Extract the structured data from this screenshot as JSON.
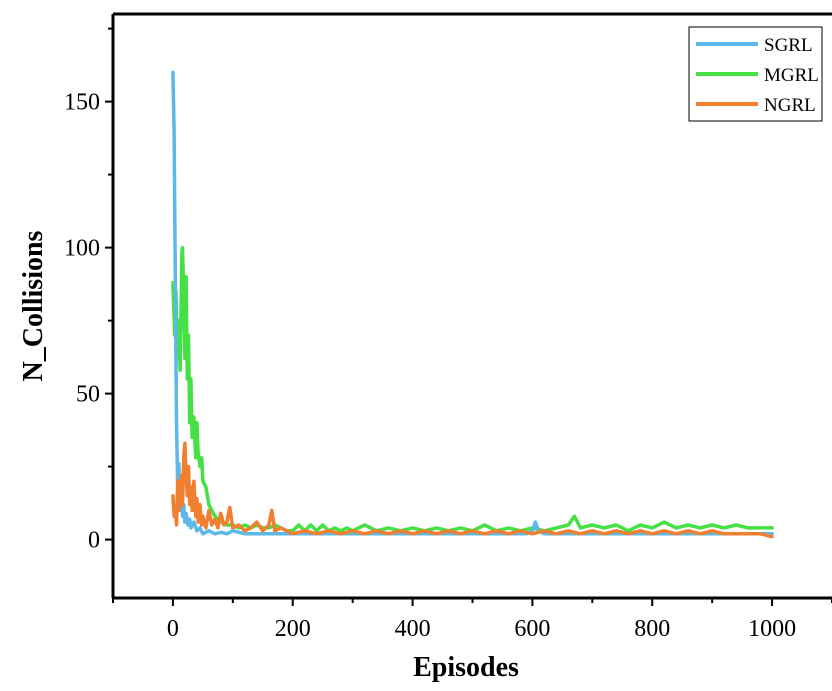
{
  "chart_data": {
    "type": "line",
    "title": "",
    "xlabel": "Episodes",
    "ylabel": "N_Collisions",
    "xlim": [
      -100,
      1100
    ],
    "ylim": [
      -20,
      180
    ],
    "xticks": [
      0,
      200,
      400,
      600,
      800,
      1000
    ],
    "yticks": [
      0,
      50,
      100,
      150
    ],
    "xtick_labels": [
      "0",
      "200",
      "400",
      "600",
      "800",
      "1000"
    ],
    "ytick_labels": [
      "0",
      "50",
      "100",
      "150"
    ],
    "grid": false,
    "legend_position": "top-right",
    "series": [
      {
        "name": "SGRL",
        "color": "#5bb8e8",
        "points": [
          [
            0,
            160
          ],
          [
            2,
            140
          ],
          [
            4,
            90
          ],
          [
            6,
            40
          ],
          [
            8,
            18
          ],
          [
            10,
            26
          ],
          [
            12,
            10
          ],
          [
            14,
            18
          ],
          [
            16,
            8
          ],
          [
            18,
            12
          ],
          [
            20,
            6
          ],
          [
            22,
            9
          ],
          [
            25,
            5
          ],
          [
            28,
            7
          ],
          [
            30,
            4
          ],
          [
            35,
            6
          ],
          [
            40,
            3
          ],
          [
            45,
            4
          ],
          [
            50,
            2
          ],
          [
            60,
            3
          ],
          [
            70,
            2
          ],
          [
            80,
            2.5
          ],
          [
            90,
            2
          ],
          [
            100,
            3
          ],
          [
            120,
            2
          ],
          [
            150,
            2
          ],
          [
            200,
            2
          ],
          [
            300,
            2
          ],
          [
            400,
            2
          ],
          [
            500,
            2
          ],
          [
            590,
            2
          ],
          [
            600,
            3
          ],
          [
            605,
            6
          ],
          [
            610,
            3
          ],
          [
            620,
            2
          ],
          [
            700,
            2
          ],
          [
            800,
            2
          ],
          [
            900,
            2
          ],
          [
            1000,
            2
          ]
        ]
      },
      {
        "name": "MGRL",
        "color": "#44e044",
        "points": [
          [
            0,
            88
          ],
          [
            3,
            70
          ],
          [
            5,
            85
          ],
          [
            8,
            62
          ],
          [
            10,
            75
          ],
          [
            12,
            58
          ],
          [
            15,
            98
          ],
          [
            16,
            100
          ],
          [
            18,
            85
          ],
          [
            20,
            62
          ],
          [
            22,
            90
          ],
          [
            24,
            55
          ],
          [
            26,
            70
          ],
          [
            28,
            40
          ],
          [
            30,
            55
          ],
          [
            32,
            35
          ],
          [
            35,
            42
          ],
          [
            38,
            28
          ],
          [
            40,
            40
          ],
          [
            42,
            30
          ],
          [
            45,
            25
          ],
          [
            48,
            28
          ],
          [
            50,
            20
          ],
          [
            55,
            18
          ],
          [
            60,
            12
          ],
          [
            65,
            10
          ],
          [
            70,
            8
          ],
          [
            75,
            7
          ],
          [
            80,
            6
          ],
          [
            90,
            5
          ],
          [
            100,
            5
          ],
          [
            110,
            4
          ],
          [
            120,
            5
          ],
          [
            130,
            4
          ],
          [
            140,
            5
          ],
          [
            150,
            4
          ],
          [
            160,
            4
          ],
          [
            170,
            5
          ],
          [
            180,
            4
          ],
          [
            190,
            3
          ],
          [
            200,
            3
          ],
          [
            210,
            5
          ],
          [
            220,
            3
          ],
          [
            230,
            5
          ],
          [
            240,
            3
          ],
          [
            250,
            5
          ],
          [
            260,
            3
          ],
          [
            270,
            4
          ],
          [
            280,
            3
          ],
          [
            290,
            4
          ],
          [
            300,
            3
          ],
          [
            320,
            5
          ],
          [
            340,
            3
          ],
          [
            360,
            4
          ],
          [
            380,
            3
          ],
          [
            400,
            4
          ],
          [
            420,
            3
          ],
          [
            440,
            4
          ],
          [
            460,
            3
          ],
          [
            480,
            4
          ],
          [
            500,
            3
          ],
          [
            520,
            5
          ],
          [
            540,
            3
          ],
          [
            560,
            4
          ],
          [
            580,
            3
          ],
          [
            600,
            4
          ],
          [
            620,
            3
          ],
          [
            640,
            4
          ],
          [
            660,
            5
          ],
          [
            670,
            8
          ],
          [
            680,
            4
          ],
          [
            700,
            5
          ],
          [
            720,
            4
          ],
          [
            740,
            5
          ],
          [
            760,
            3
          ],
          [
            780,
            5
          ],
          [
            800,
            4
          ],
          [
            820,
            6
          ],
          [
            840,
            4
          ],
          [
            860,
            5
          ],
          [
            880,
            4
          ],
          [
            900,
            5
          ],
          [
            920,
            4
          ],
          [
            940,
            5
          ],
          [
            960,
            4
          ],
          [
            980,
            4
          ],
          [
            1000,
            4
          ]
        ]
      },
      {
        "name": "NGRL",
        "color": "#f08030",
        "points": [
          [
            0,
            15
          ],
          [
            2,
            8
          ],
          [
            4,
            12
          ],
          [
            6,
            5
          ],
          [
            8,
            20
          ],
          [
            10,
            10
          ],
          [
            12,
            15
          ],
          [
            14,
            22
          ],
          [
            16,
            12
          ],
          [
            18,
            28
          ],
          [
            20,
            33
          ],
          [
            22,
            22
          ],
          [
            24,
            15
          ],
          [
            26,
            25
          ],
          [
            28,
            12
          ],
          [
            30,
            18
          ],
          [
            32,
            10
          ],
          [
            35,
            20
          ],
          [
            38,
            8
          ],
          [
            40,
            14
          ],
          [
            42,
            6
          ],
          [
            45,
            12
          ],
          [
            48,
            5
          ],
          [
            50,
            8
          ],
          [
            55,
            4
          ],
          [
            60,
            10
          ],
          [
            65,
            5
          ],
          [
            70,
            7
          ],
          [
            75,
            4
          ],
          [
            80,
            9
          ],
          [
            85,
            5
          ],
          [
            90,
            6
          ],
          [
            95,
            11
          ],
          [
            100,
            4
          ],
          [
            110,
            5
          ],
          [
            120,
            3
          ],
          [
            130,
            4
          ],
          [
            140,
            6
          ],
          [
            150,
            3
          ],
          [
            160,
            5
          ],
          [
            165,
            10
          ],
          [
            170,
            3
          ],
          [
            180,
            4
          ],
          [
            190,
            3
          ],
          [
            200,
            2
          ],
          [
            220,
            3
          ],
          [
            240,
            2
          ],
          [
            260,
            3
          ],
          [
            280,
            2
          ],
          [
            300,
            3
          ],
          [
            320,
            2
          ],
          [
            340,
            3
          ],
          [
            360,
            2
          ],
          [
            380,
            3
          ],
          [
            400,
            2
          ],
          [
            420,
            3
          ],
          [
            440,
            2
          ],
          [
            460,
            3
          ],
          [
            480,
            2
          ],
          [
            500,
            3
          ],
          [
            520,
            2
          ],
          [
            540,
            3
          ],
          [
            560,
            2
          ],
          [
            580,
            3
          ],
          [
            600,
            2
          ],
          [
            620,
            3
          ],
          [
            640,
            2
          ],
          [
            660,
            3
          ],
          [
            680,
            2
          ],
          [
            700,
            3
          ],
          [
            720,
            2
          ],
          [
            740,
            3
          ],
          [
            760,
            2
          ],
          [
            780,
            3
          ],
          [
            800,
            2
          ],
          [
            820,
            3
          ],
          [
            840,
            2
          ],
          [
            860,
            3
          ],
          [
            880,
            2
          ],
          [
            900,
            3
          ],
          [
            920,
            2
          ],
          [
            940,
            2
          ],
          [
            960,
            2
          ],
          [
            980,
            2
          ],
          [
            1000,
            1
          ]
        ]
      }
    ]
  }
}
